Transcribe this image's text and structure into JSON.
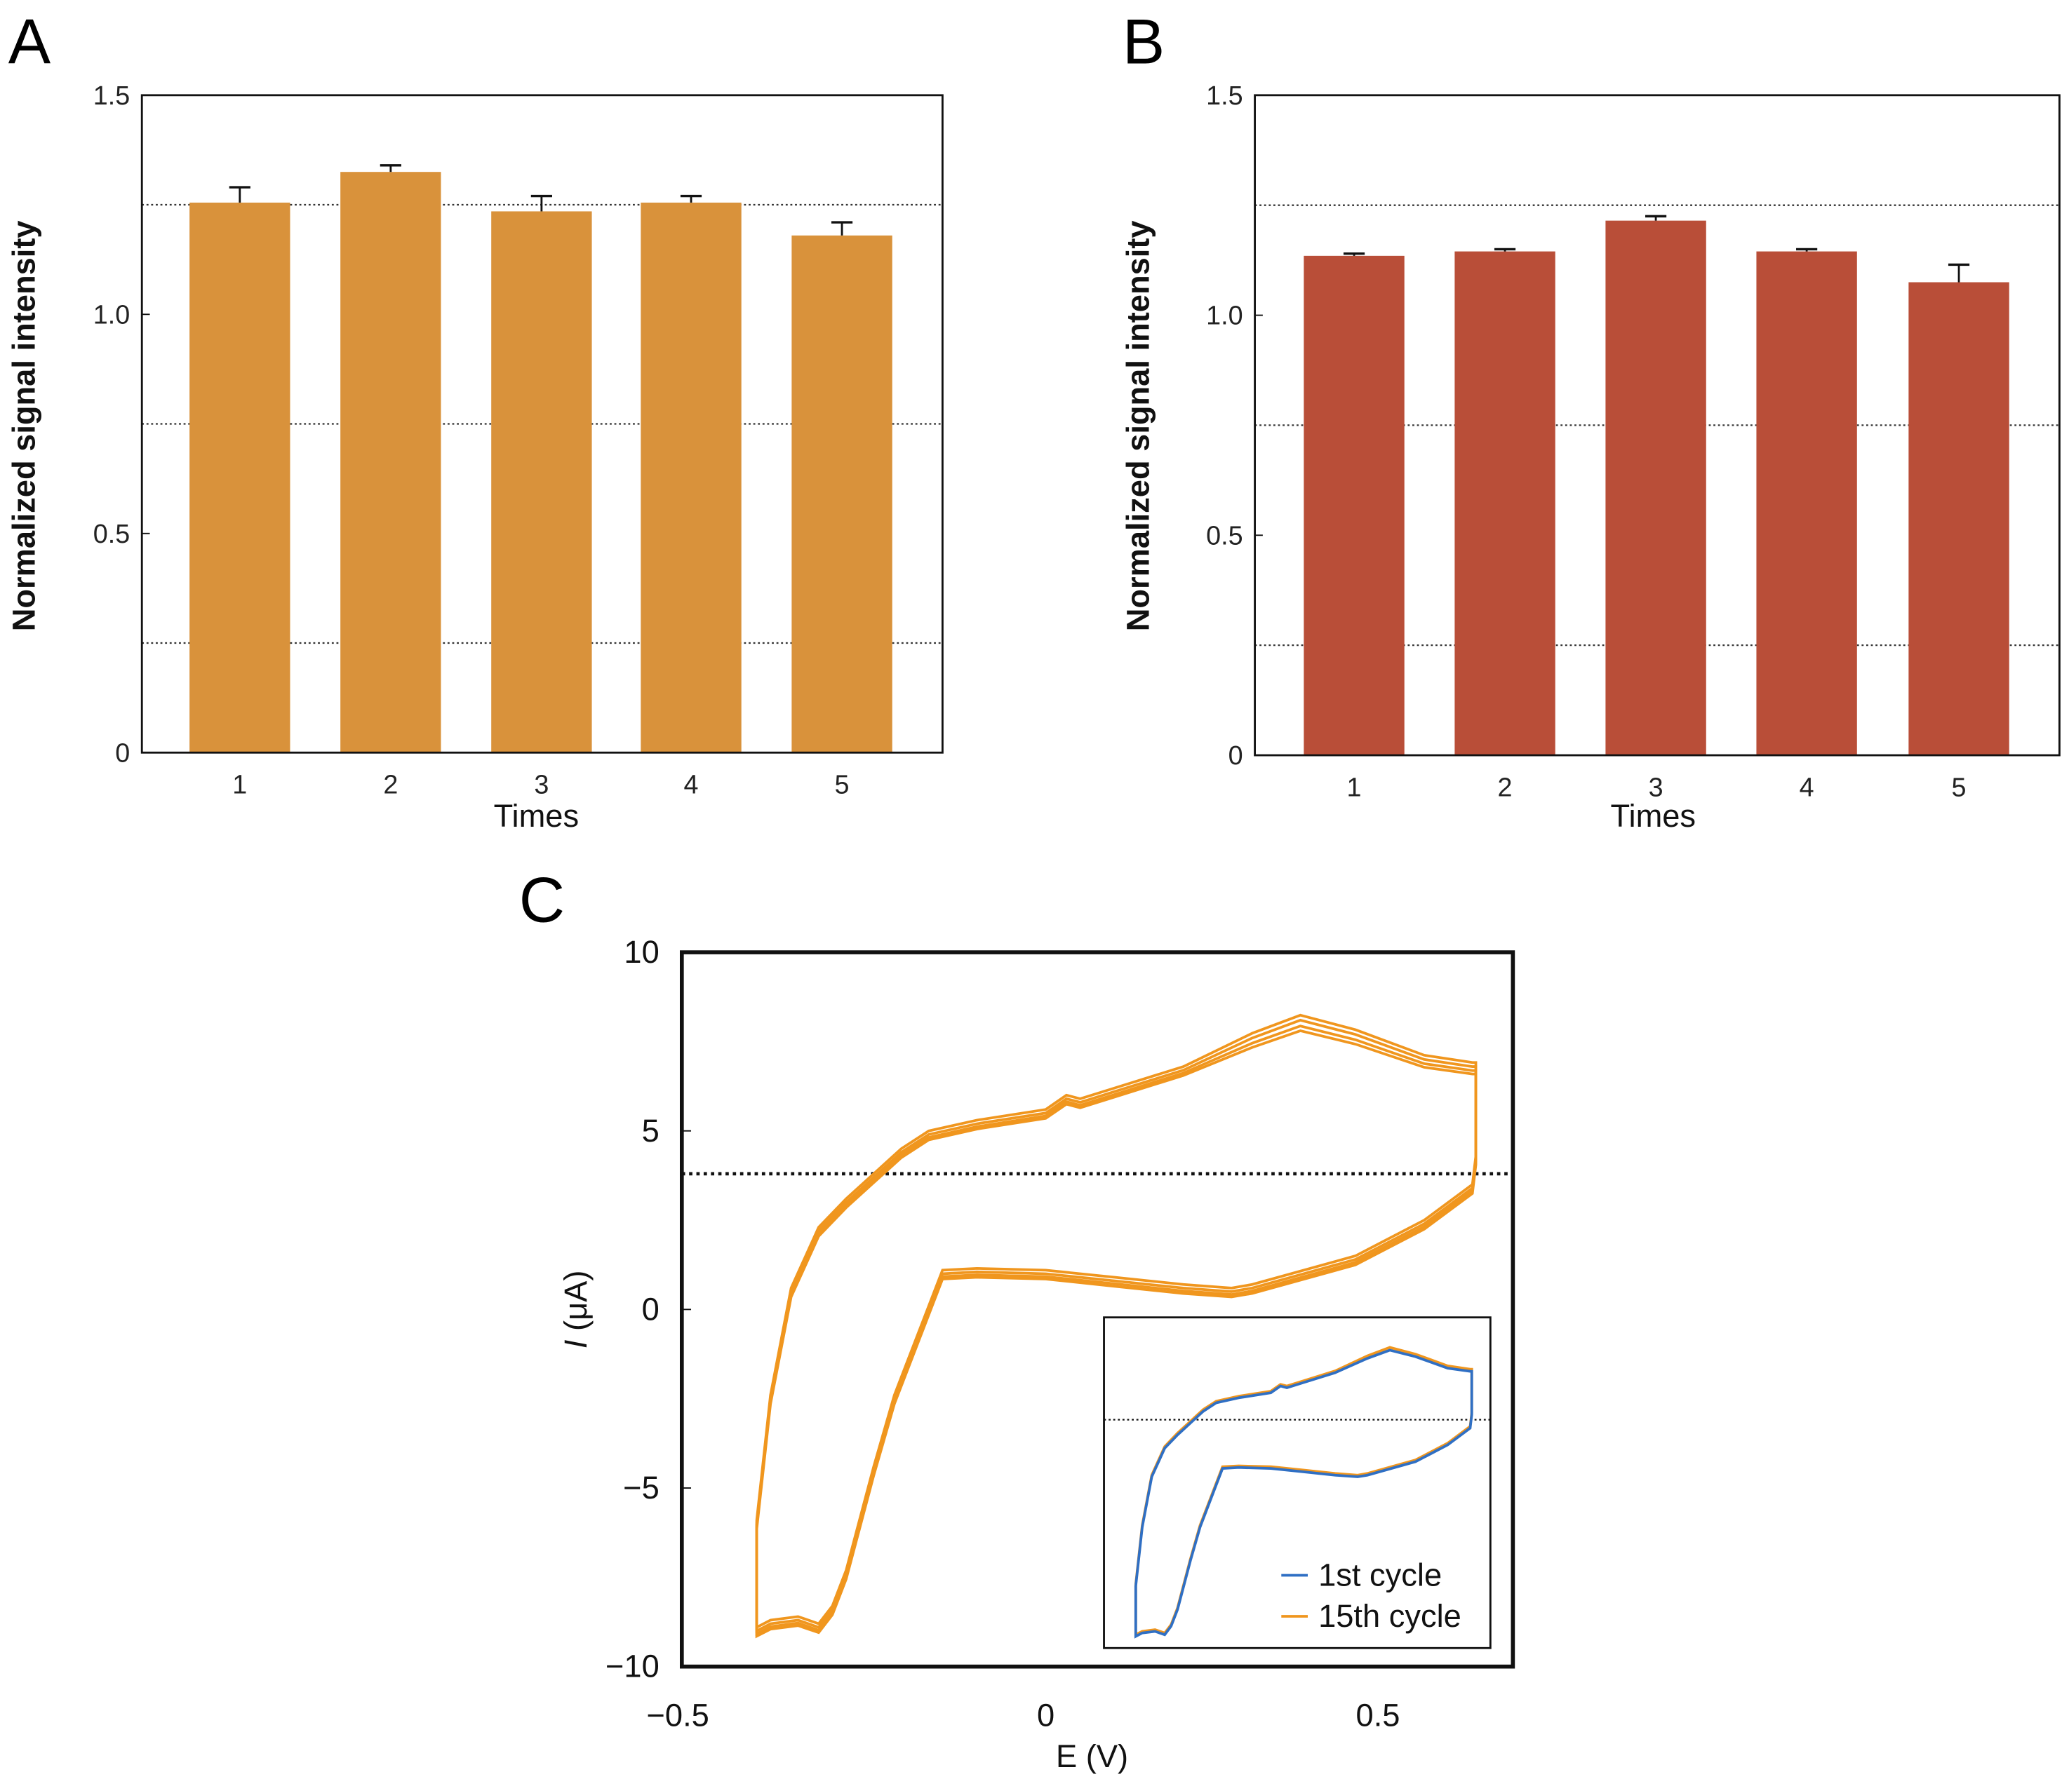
{
  "panels": {
    "a": "A",
    "b": "B",
    "c": "C"
  },
  "chart_data": [
    {
      "type": "bar",
      "panel": "A",
      "categories": [
        "1",
        "2",
        "3",
        "4",
        "5"
      ],
      "values": [
        1.255,
        1.325,
        1.235,
        1.255,
        1.18
      ],
      "errors": [
        0.035,
        0.015,
        0.035,
        0.015,
        0.03
      ],
      "color": "#d9923b",
      "xlabel": "Times",
      "ylabel": "Normalized signal intensity",
      "ylim": [
        0,
        1.5
      ],
      "yticks": [
        "0",
        "0.5",
        "1.0",
        "1.5"
      ],
      "ytick_values": [
        0,
        0.5,
        1.0,
        1.5
      ],
      "grid_dotted_at": [
        0.25,
        0.75,
        1.25
      ]
    },
    {
      "type": "bar",
      "panel": "B",
      "categories": [
        "1",
        "2",
        "3",
        "4",
        "5"
      ],
      "values": [
        1.135,
        1.145,
        1.215,
        1.145,
        1.075
      ],
      "errors": [
        0.005,
        0.005,
        0.01,
        0.005,
        0.04
      ],
      "color": "#b94e38",
      "xlabel": "Times",
      "ylabel": "Normalized signal intensity",
      "ylim": [
        0,
        1.5
      ],
      "yticks": [
        "0",
        "0.5",
        "1.0",
        "1.5"
      ],
      "ytick_values": [
        0,
        0.5,
        1.0,
        1.5
      ],
      "grid_dotted_at": [
        0.25,
        0.75,
        1.25
      ]
    },
    {
      "type": "line",
      "panel": "C",
      "xlabel": "E (V)",
      "ylabel_italic": "I",
      "ylabel_unit": " (μA)",
      "xlim": [
        -0.53,
        0.68
      ],
      "ylim": [
        -10,
        10
      ],
      "xticks": [
        "−0.5",
        "0",
        "0.5"
      ],
      "xtick_values": [
        -0.5,
        0,
        0.5
      ],
      "yticks": [
        "10",
        "5",
        "0",
        "−5",
        "−10"
      ],
      "ytick_values": [
        10,
        5,
        0,
        -5,
        -10
      ],
      "dotted_line_at": 3.8,
      "cv_curve": {
        "E": [
          -0.42,
          -0.4,
          -0.37,
          -0.33,
          -0.29,
          -0.25,
          -0.21,
          -0.17,
          -0.1,
          0,
          0.03,
          0.05,
          0.1,
          0.2,
          0.3,
          0.37,
          0.45,
          0.55,
          0.62,
          0.625,
          0.625,
          0.62,
          0.55,
          0.45,
          0.3,
          0.27,
          0.2,
          0.1,
          0,
          -0.1,
          -0.15,
          -0.18,
          -0.22,
          -0.25,
          -0.29,
          -0.31,
          -0.33,
          -0.36,
          -0.4,
          -0.42,
          -0.42
        ],
        "I": [
          -6,
          -2.5,
          0.5,
          2.2,
          3,
          3.7,
          4.4,
          4.9,
          5.2,
          5.5,
          5.9,
          5.8,
          6.1,
          6.7,
          7.6,
          8.1,
          7.7,
          7,
          6.8,
          6.8,
          4.2,
          3.4,
          2.4,
          1.4,
          0.6,
          0.5,
          0.6,
          0.8,
          1,
          1.05,
          1,
          -0.5,
          -2.5,
          -4.5,
          -7.4,
          -8.4,
          -8.9,
          -8.7,
          -8.8,
          -9,
          -6
        ]
      },
      "series": [
        {
          "name": "1st cycle",
          "color": "#2f6fc4",
          "peak_scale": 0.97
        },
        {
          "name": "15th cycle",
          "color": "#f0961e",
          "peak_scale": 1.0
        }
      ],
      "legend_placement": "inset bottom-right"
    }
  ]
}
